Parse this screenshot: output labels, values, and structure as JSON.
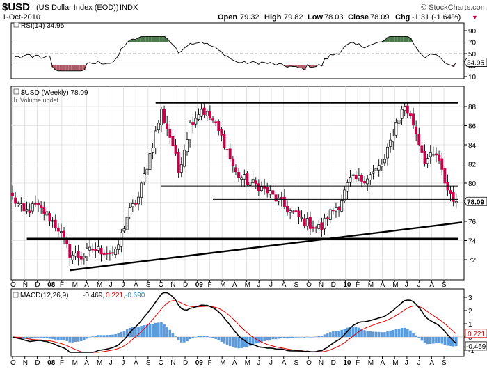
{
  "header": {
    "symbol": "$USD",
    "name": "(US Dollar Index (EOD))",
    "exchange": "INDX",
    "date": "1-Oct-2010",
    "credit": "© StockCharts.com",
    "quote": {
      "open_label": "Open",
      "open": "79.32",
      "high_label": "High",
      "high": "79.82",
      "low_label": "Low",
      "low": "78.03",
      "close_label": "Close",
      "close": "78.09",
      "chg_label": "Chg",
      "chg": "-1.31 (-1.64%)",
      "chg_marker": "▼"
    }
  },
  "rsi_panel": {
    "label": "RSI(14) 34.95",
    "value_tag": "34.95",
    "ticks": [
      "90",
      "70",
      "50",
      "30",
      "10"
    ]
  },
  "price_panel": {
    "label": "$USD (Weekly) 78.09",
    "volume_label": "Volume undef",
    "last_price": "78.09",
    "ticks": [
      "88",
      "86",
      "84",
      "82",
      "80",
      "78",
      "76",
      "74",
      "72"
    ]
  },
  "macd_panel": {
    "label_prefix": "MACD(12,26,9)",
    "macd_value": "-0.469,",
    "signal_value": "0.221,",
    "hist_value": "-0.690",
    "tag_signal": "0.221",
    "tag_macd": "-0.469",
    "ticks": [
      "3",
      "2",
      "1",
      "0",
      "-1"
    ]
  },
  "x_axis": {
    "labels": [
      "O",
      "N",
      "D",
      "08",
      "F",
      "M",
      "A",
      "M",
      "J",
      "J",
      "A",
      "S",
      "O",
      "N",
      "D",
      "09",
      "F",
      "M",
      "A",
      "M",
      "J",
      "J",
      "A",
      "S",
      "O",
      "N",
      "D",
      "10",
      "F",
      "M",
      "A",
      "M",
      "J",
      "J",
      "A",
      "S"
    ],
    "bold_labels": [
      "08",
      "09",
      "10"
    ]
  },
  "colors": {
    "up": "#ffffff",
    "down": "#c8004b",
    "candle_edge": "#000000",
    "rsi_over": "#4d7a4d",
    "rsi_under": "#b05c6a",
    "macd_line": "#000000",
    "signal_line": "#e00000",
    "histogram": "#3c8ad8",
    "hist_value_color": "#2a8ab8",
    "grid": "#cfcfcf"
  },
  "chart_data": {
    "type": "candlestick",
    "title": "$USD (US Dollar Index (EOD)) Weekly",
    "period": "Oct 2007 – Oct 2010",
    "price_range": [
      70.5,
      89.3
    ],
    "weekly_close_anchors": [
      {
        "week": 0,
        "close": 78.5
      },
      {
        "week": 4,
        "close": 76.9
      },
      {
        "week": 8,
        "close": 77.6
      },
      {
        "week": 12,
        "close": 76.7
      },
      {
        "week": 16,
        "close": 75.3
      },
      {
        "week": 20,
        "close": 72.6
      },
      {
        "week": 24,
        "close": 72.3
      },
      {
        "week": 28,
        "close": 73.1
      },
      {
        "week": 32,
        "close": 72.9
      },
      {
        "week": 36,
        "close": 72.6
      },
      {
        "week": 40,
        "close": 76.5
      },
      {
        "week": 44,
        "close": 78.5
      },
      {
        "week": 48,
        "close": 83.0
      },
      {
        "week": 52,
        "close": 87.5
      },
      {
        "week": 56,
        "close": 84.0
      },
      {
        "week": 58,
        "close": 81.2
      },
      {
        "week": 62,
        "close": 86.2
      },
      {
        "week": 66,
        "close": 87.8
      },
      {
        "week": 70,
        "close": 86.5
      },
      {
        "week": 74,
        "close": 84.2
      },
      {
        "week": 78,
        "close": 81.0
      },
      {
        "week": 82,
        "close": 80.2
      },
      {
        "week": 86,
        "close": 79.7
      },
      {
        "week": 90,
        "close": 78.9
      },
      {
        "week": 94,
        "close": 77.8
      },
      {
        "week": 98,
        "close": 76.8
      },
      {
        "week": 102,
        "close": 76.0
      },
      {
        "week": 106,
        "close": 75.4
      },
      {
        "week": 108,
        "close": 75.3
      },
      {
        "week": 110,
        "close": 76.6
      },
      {
        "week": 114,
        "close": 77.8
      },
      {
        "week": 118,
        "close": 80.3
      },
      {
        "week": 122,
        "close": 80.4
      },
      {
        "week": 126,
        "close": 81.0
      },
      {
        "week": 130,
        "close": 82.3
      },
      {
        "week": 134,
        "close": 86.3
      },
      {
        "week": 137,
        "close": 88.1
      },
      {
        "week": 140,
        "close": 86.2
      },
      {
        "week": 144,
        "close": 82.4
      },
      {
        "week": 148,
        "close": 82.9
      },
      {
        "week": 152,
        "close": 79.3
      },
      {
        "week": 155,
        "close": 78.09
      }
    ],
    "trendlines": [
      {
        "name": "resistance",
        "level": 88.4,
        "from_week": 50,
        "to_week": 155
      },
      {
        "name": "support",
        "level": 74.2,
        "from_week": 5,
        "to_week": 155
      },
      {
        "name": "mid-line",
        "level": 79.7,
        "from_week": 52,
        "to_week": 155
      },
      {
        "name": "mid-line-2",
        "level": 78.3,
        "from_week": 70,
        "to_week": 155
      },
      {
        "name": "rising-trend",
        "from": [
          20,
          70.9
        ],
        "to": [
          157,
          75.9
        ]
      }
    ],
    "rsi": {
      "last": 34.95,
      "range": [
        0,
        100
      ],
      "guides": [
        70,
        50,
        30
      ]
    },
    "macd": {
      "params": "12,26,9",
      "macd": -0.469,
      "signal": 0.221,
      "histogram": -0.69,
      "range": [
        -1.2,
        3.5
      ]
    }
  }
}
